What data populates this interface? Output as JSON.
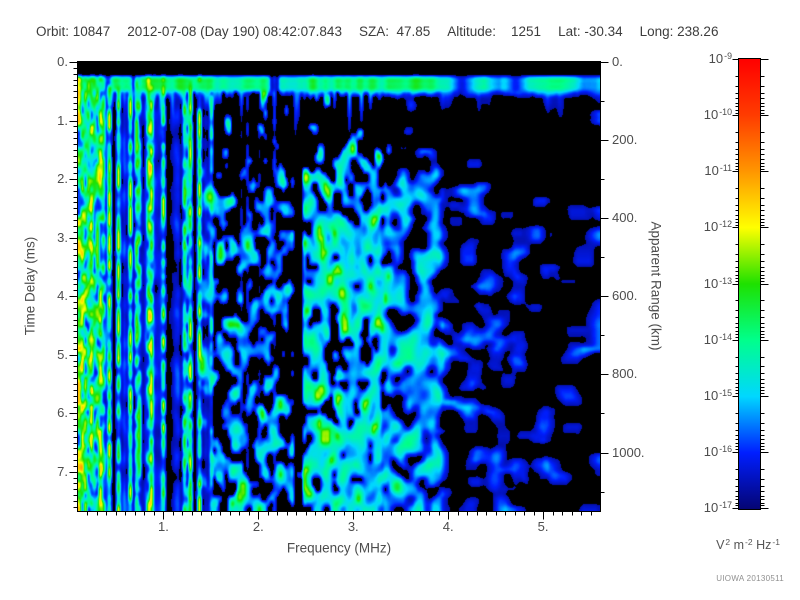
{
  "header": {
    "items": [
      "Orbit: 10847",
      "2012-07-08 (Day 190) 08:42:07.843",
      "SZA:  47.85",
      "Altitude:    1251",
      "Lat: -30.34",
      "Long: 238.26"
    ]
  },
  "watermark": "UIOWA 20130511",
  "chart_data": {
    "type": "heatmap",
    "subtype": "radar-sounder-ionogram",
    "xlabel": "Frequency (MHz)",
    "ylabel_left": "Time Delay (ms)",
    "ylabel_right": "Apparent Range (km)",
    "x_range_mhz": [
      0.1,
      5.6
    ],
    "x_major_ticks": [
      1,
      2,
      3,
      4,
      5
    ],
    "x_minor_step_mhz": 0.1,
    "y_range_ms": [
      0,
      7.67
    ],
    "y_major_ticks": [
      0,
      1,
      2,
      3,
      4,
      5,
      6,
      7
    ],
    "y_minor_step_ms": 0.1,
    "right_axis_km_ticks": [
      0,
      200,
      400,
      600,
      800,
      1000
    ],
    "right_axis_minor_step_km": 100,
    "speed_of_light_km_per_ms": 299.792,
    "grid": false,
    "colorbar": {
      "scale": "log",
      "decade_exponents": [
        -9,
        -10,
        -11,
        -12,
        -13,
        -14,
        -15,
        -16,
        -17
      ],
      "unit_segments": [
        {
          "t": "V",
          "s": "2"
        },
        {
          "t": " m",
          "s": "-2"
        },
        {
          "t": " Hz",
          "s": "-1"
        }
      ],
      "stops": [
        {
          "v": 0.0,
          "rgb": [
            5,
            5,
            115
          ]
        },
        {
          "v": 0.125,
          "rgb": [
            0,
            30,
            255
          ]
        },
        {
          "v": 0.25,
          "rgb": [
            0,
            215,
            255
          ]
        },
        {
          "v": 0.375,
          "rgb": [
            0,
            255,
            140
          ]
        },
        {
          "v": 0.5,
          "rgb": [
            30,
            225,
            0
          ]
        },
        {
          "v": 0.625,
          "rgb": [
            255,
            255,
            0
          ]
        },
        {
          "v": 0.75,
          "rgb": [
            255,
            150,
            0
          ]
        },
        {
          "v": 0.875,
          "rgb": [
            255,
            60,
            0
          ]
        },
        {
          "v": 1.0,
          "rgb": [
            255,
            0,
            0
          ]
        }
      ]
    },
    "features": {
      "seed": 1347,
      "grid_nx": 174,
      "grid_ny": 93,
      "black_threshold": 0.05,
      "top_blank_ms": 0.18,
      "surface_band": {
        "t_start_ms": 0.2,
        "t_end_ms": 0.47,
        "value": 0.44,
        "value_right": 0.37,
        "right_start_mhz": 3.9,
        "gap_level": 0.1,
        "tail_probability": 0.45,
        "tail_max_ms": 1.35
      },
      "harmonic_stripes": {
        "f_full_mhz": 0.95,
        "f_fade_mhz": 1.5,
        "f_end_mhz": 2.3,
        "p_full": 0.55,
        "p_fade": 0.35,
        "p_weak": 0.15,
        "value_min": 0.3,
        "value_rand": 0.22,
        "weak_value": 0.15,
        "bright_lines_mhz": [
          0.11,
          0.22,
          0.33,
          0.52,
          0.64,
          0.86,
          1.28,
          1.36
        ],
        "bright_value": 0.5,
        "background_level": 0.13
      },
      "noise_field": {
        "f_start_mhz": 1.4,
        "ramp_t_ms": [
          0.7,
          2.9
        ],
        "right_gate_mhz": 4.3,
        "smear_start_mhz": 3.4,
        "bright_spot_boost": 0.12,
        "regions": [
          {
            "f0": 1.4,
            "f1": 2.36,
            "density": 0.52,
            "value": 0.3
          },
          {
            "f0": 2.36,
            "f1": 2.48,
            "density": 0.06,
            "value": 0.2
          },
          {
            "f0": 2.48,
            "f1": 3.3,
            "density": 0.74,
            "value": 0.33
          },
          {
            "f0": 3.3,
            "f1": 3.95,
            "density": 0.64,
            "value": 0.28
          },
          {
            "f0": 3.95,
            "f1": 4.18,
            "density": 0.34,
            "value": 0.23
          },
          {
            "f0": 4.18,
            "f1": 4.8,
            "density": 0.42,
            "value": 0.22
          },
          {
            "f0": 4.8,
            "f1": 5.6,
            "density": 0.26,
            "value": 0.19
          }
        ]
      }
    }
  }
}
